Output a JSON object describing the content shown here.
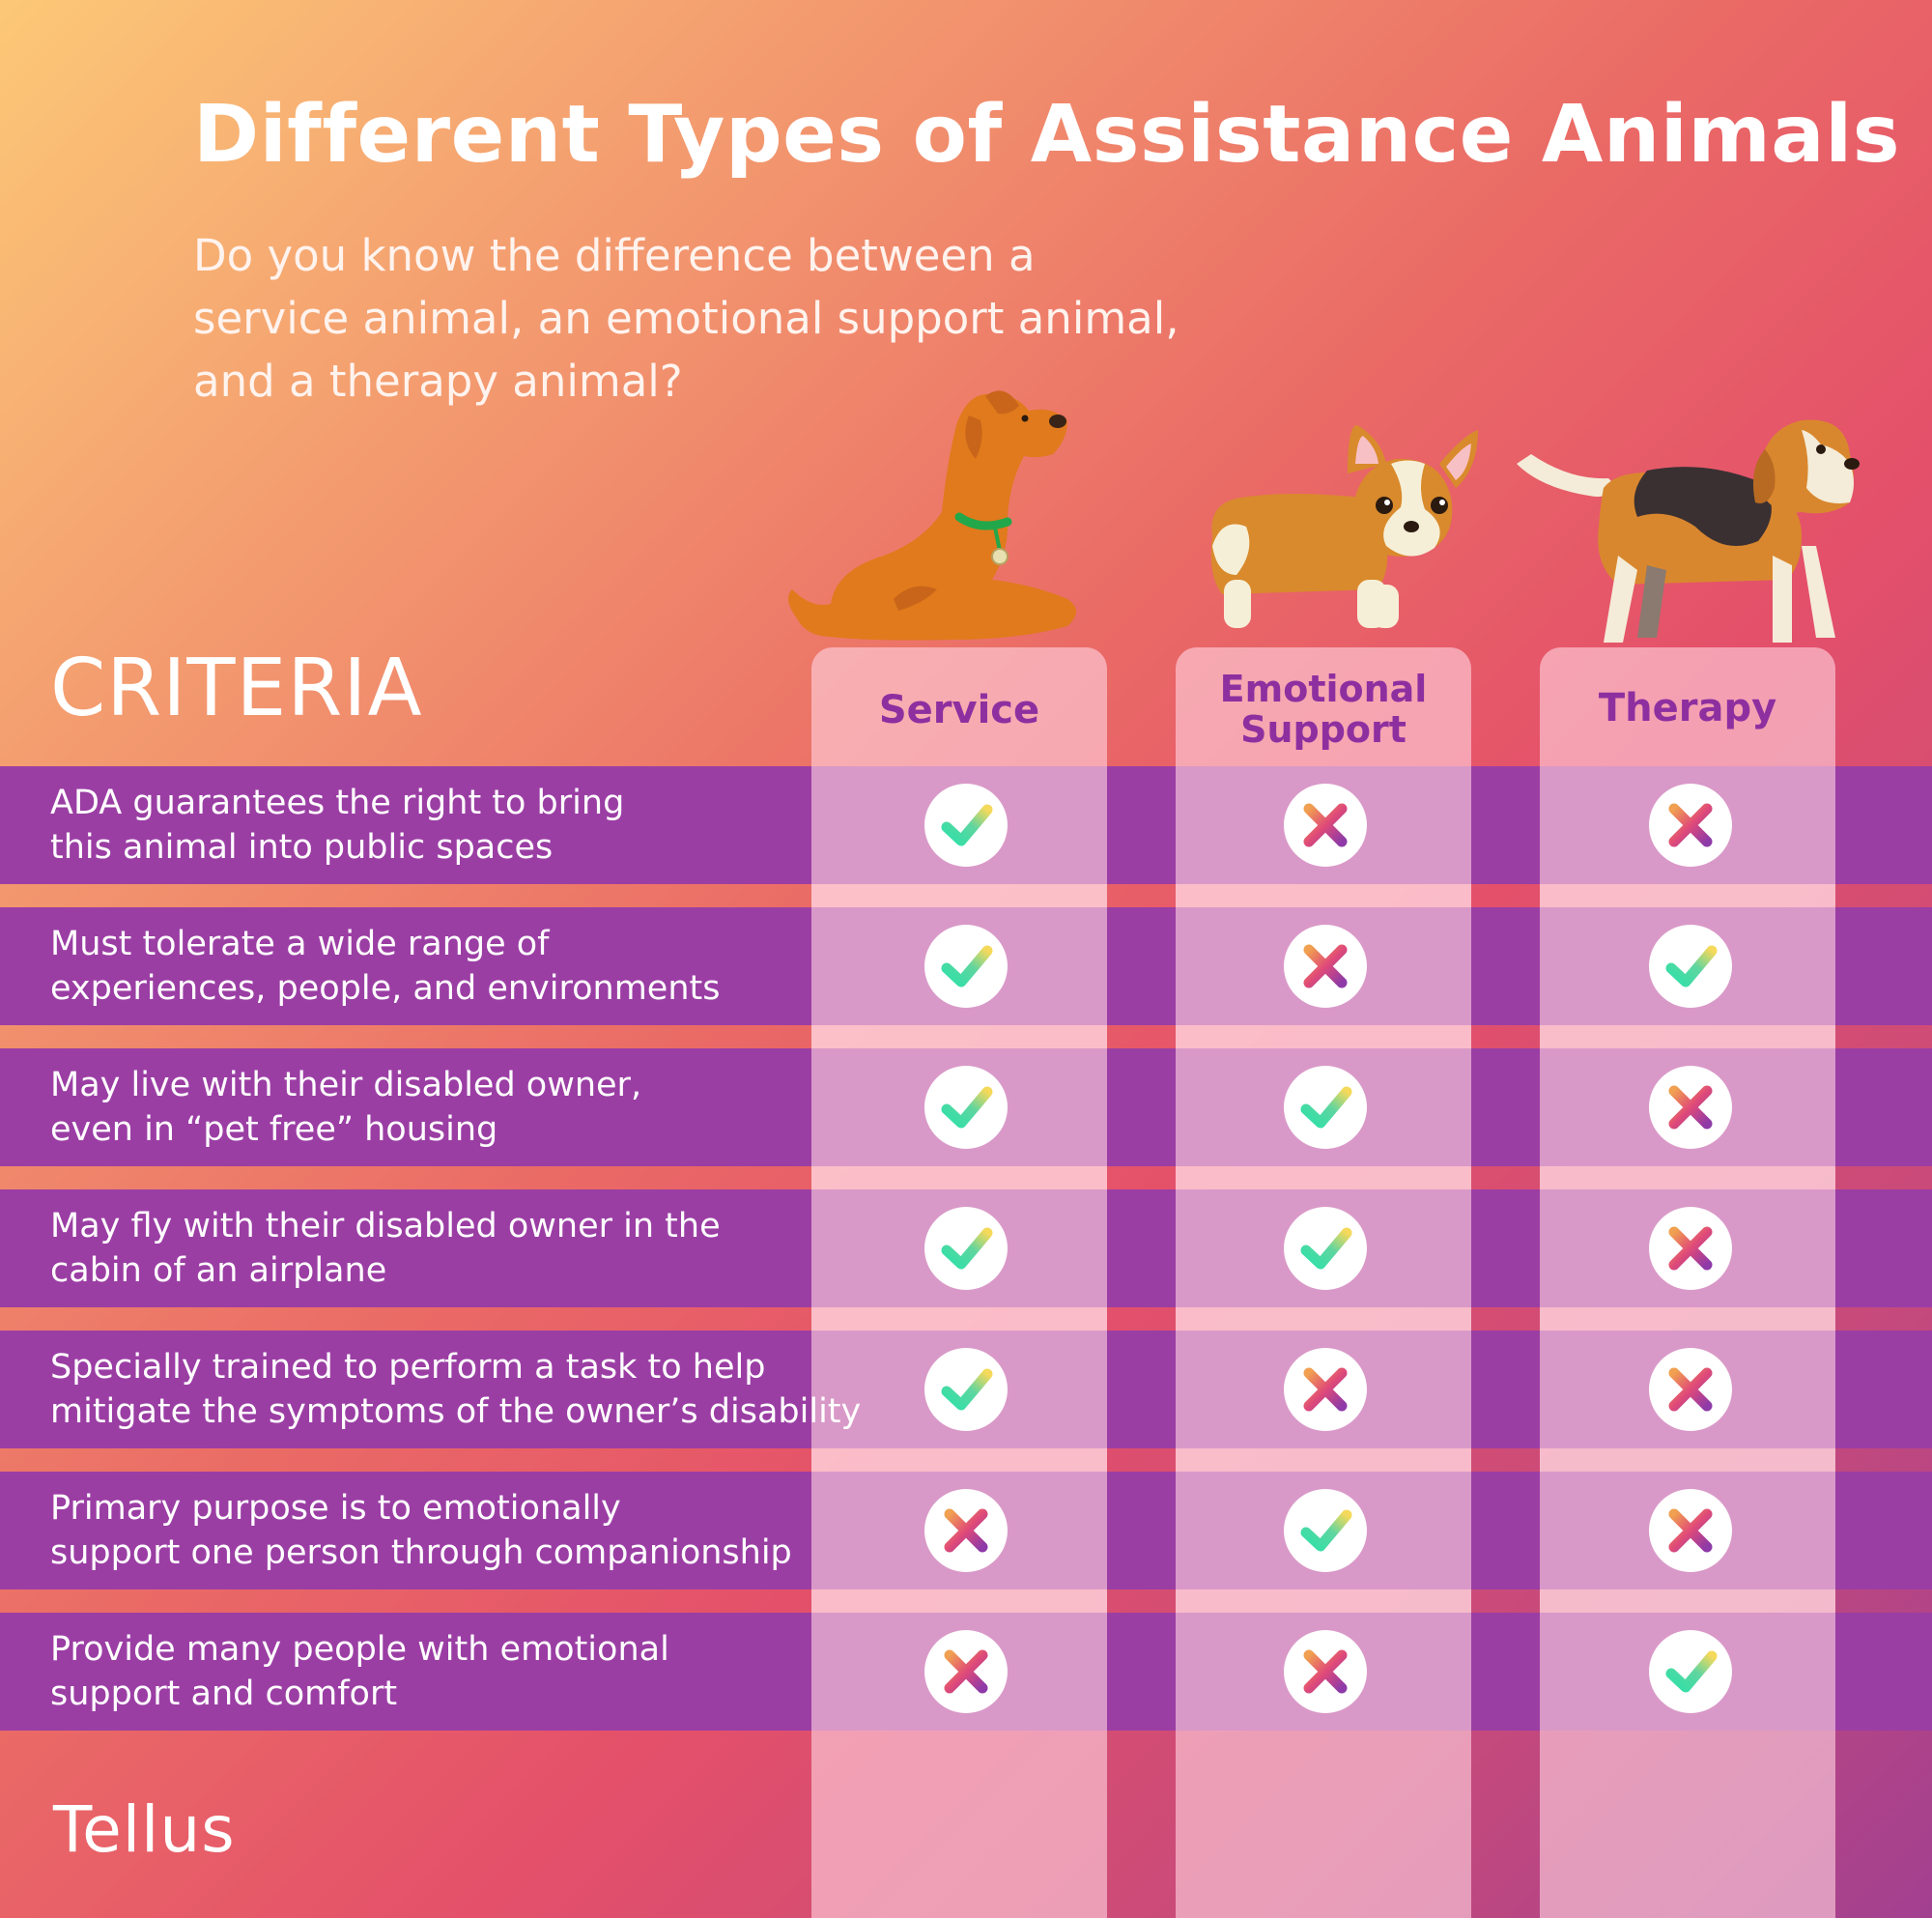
{
  "title": "Different Types of Assistance Animals",
  "subtitle": "Do you know the difference between a service animal, an emotional support animal, and a therapy animal?",
  "criteria_heading": "CRITERIA",
  "columns": [
    {
      "label_lines": [
        "Service"
      ]
    },
    {
      "label_lines": [
        "Emotional",
        "Support"
      ]
    },
    {
      "label_lines": [
        "Therapy"
      ]
    }
  ],
  "rows": [
    {
      "lines": [
        "ADA guarantees the right to bring",
        "this animal into public spaces"
      ],
      "marks": [
        "check",
        "cross",
        "cross"
      ]
    },
    {
      "lines": [
        "Must tolerate a wide range of",
        "experiences, people, and environments"
      ],
      "marks": [
        "check",
        "cross",
        "check"
      ]
    },
    {
      "lines": [
        "May live with their disabled owner,",
        "even in “pet free” housing"
      ],
      "marks": [
        "check",
        "check",
        "cross"
      ]
    },
    {
      "lines": [
        "May fly with their disabled owner in the",
        "cabin of an airplane"
      ],
      "marks": [
        "check",
        "check",
        "cross"
      ]
    },
    {
      "lines": [
        "Specially trained to perform a task to help",
        "mitigate the symptoms of the owner’s disability"
      ],
      "marks": [
        "check",
        "cross",
        "cross"
      ]
    },
    {
      "lines": [
        "Primary purpose is to emotionally",
        "support one person through companionship"
      ],
      "marks": [
        "cross",
        "check",
        "cross"
      ]
    },
    {
      "lines": [
        "Provide many people with emotional",
        "support and comfort"
      ],
      "marks": [
        "cross",
        "cross",
        "check"
      ]
    }
  ],
  "icons": {
    "check": "check-icon",
    "cross": "cross-icon",
    "service_dog": "sitting-terrier-illustration",
    "emotional_dog": "corgi-puppy-illustration",
    "therapy_dog": "beagle-illustration"
  },
  "colors": {
    "band": "#9b3ea4",
    "column_label": "#8e2fa0",
    "check_gradient": [
      "#2fe0a8",
      "#f5d95a"
    ],
    "cross_gradient": [
      "#f0a050",
      "#e04a78",
      "#8e3aa8"
    ]
  },
  "brand": "Tellus"
}
